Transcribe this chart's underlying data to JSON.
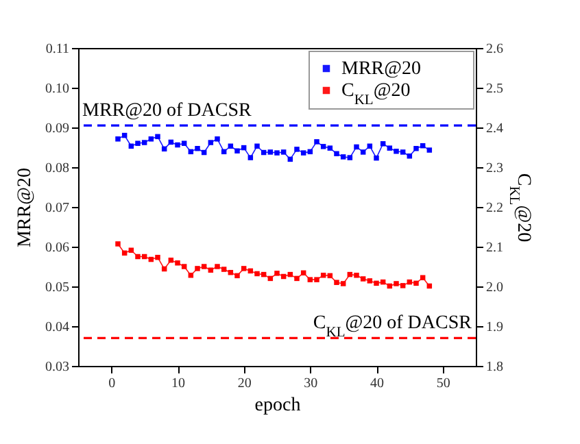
{
  "chart_data": {
    "type": "line",
    "xlabel": "epoch",
    "ylabel": "MRR@20",
    "y2label": "C$_{KL}$@20",
    "x": [
      1,
      2,
      3,
      4,
      5,
      6,
      7,
      8,
      9,
      10,
      11,
      12,
      13,
      14,
      15,
      16,
      17,
      18,
      19,
      20,
      21,
      22,
      23,
      24,
      25,
      26,
      27,
      28,
      29,
      30,
      31,
      32,
      33,
      34,
      35,
      36,
      37,
      38,
      39,
      40,
      41,
      42,
      43,
      44,
      45,
      46,
      47,
      48
    ],
    "series": [
      {
        "name": "MRR@20",
        "color": "#0000ff",
        "values": [
          0.0871,
          0.088,
          0.0853,
          0.086,
          0.0862,
          0.0871,
          0.0877,
          0.0846,
          0.0863,
          0.0856,
          0.086,
          0.0839,
          0.0847,
          0.0837,
          0.0862,
          0.0871,
          0.0839,
          0.0853,
          0.0841,
          0.0849,
          0.0824,
          0.0853,
          0.0837,
          0.0838,
          0.0836,
          0.0838,
          0.082,
          0.0845,
          0.0836,
          0.0839,
          0.0864,
          0.0852,
          0.0848,
          0.0834,
          0.0826,
          0.0824,
          0.0851,
          0.0838,
          0.0853,
          0.0823,
          0.0859,
          0.0848,
          0.084,
          0.0838,
          0.0828,
          0.0847,
          0.0854,
          0.0843
        ]
      },
      {
        "name": "C$_{KL}$@20",
        "color": "#ff0000",
        "axis": "y2",
        "values": [
          2.107,
          2.084,
          2.091,
          2.075,
          2.075,
          2.068,
          2.073,
          2.044,
          2.066,
          2.059,
          2.05,
          2.028,
          2.045,
          2.05,
          2.041,
          2.05,
          2.043,
          2.035,
          2.027,
          2.045,
          2.039,
          2.032,
          2.03,
          2.02,
          2.033,
          2.025,
          2.03,
          2.02,
          2.034,
          2.017,
          2.017,
          2.028,
          2.027,
          2.01,
          2.007,
          2.03,
          2.028,
          2.019,
          2.014,
          2.008,
          2.011,
          2.001,
          2.007,
          2.002,
          2.011,
          2.008,
          2.022,
          2.001
        ]
      }
    ],
    "xlim": [
      -5,
      55
    ],
    "xticks": [
      0,
      10,
      20,
      30,
      40,
      50
    ],
    "ylim": [
      0.03,
      0.11
    ],
    "yticks": [
      {
        "value": 0.03,
        "label": "0.03"
      },
      {
        "value": 0.04,
        "label": "0.04"
      },
      {
        "value": 0.05,
        "label": "0.05"
      },
      {
        "value": 0.06,
        "label": "0.06"
      },
      {
        "value": 0.07,
        "label": "0.07"
      },
      {
        "value": 0.08,
        "label": "0.08"
      },
      {
        "value": 0.09,
        "label": "0.09"
      },
      {
        "value": 0.1,
        "label": "0.10"
      },
      {
        "value": 0.11,
        "label": "0.11"
      }
    ],
    "y2lim": [
      1.8,
      2.6
    ],
    "y2ticks": [
      1.8,
      1.9,
      {
        "value": 2,
        "label": "2.0"
      },
      2.1,
      2.2,
      2.3,
      2.4,
      2.5,
      2.6
    ],
    "ref_lines": [
      {
        "axis": "y",
        "value": 0.0905,
        "label": "MRR@20 of DACSR",
        "color": "#0000ff",
        "line_style": "dashed"
      },
      {
        "axis": "y2",
        "value": 1.87,
        "label": "C$_{KL}$@20 of DACSR",
        "color": "#ff0000",
        "line_style": "dashed"
      }
    ],
    "marker": "square",
    "line_style": "solid",
    "grid": false,
    "legend": "top right"
  }
}
